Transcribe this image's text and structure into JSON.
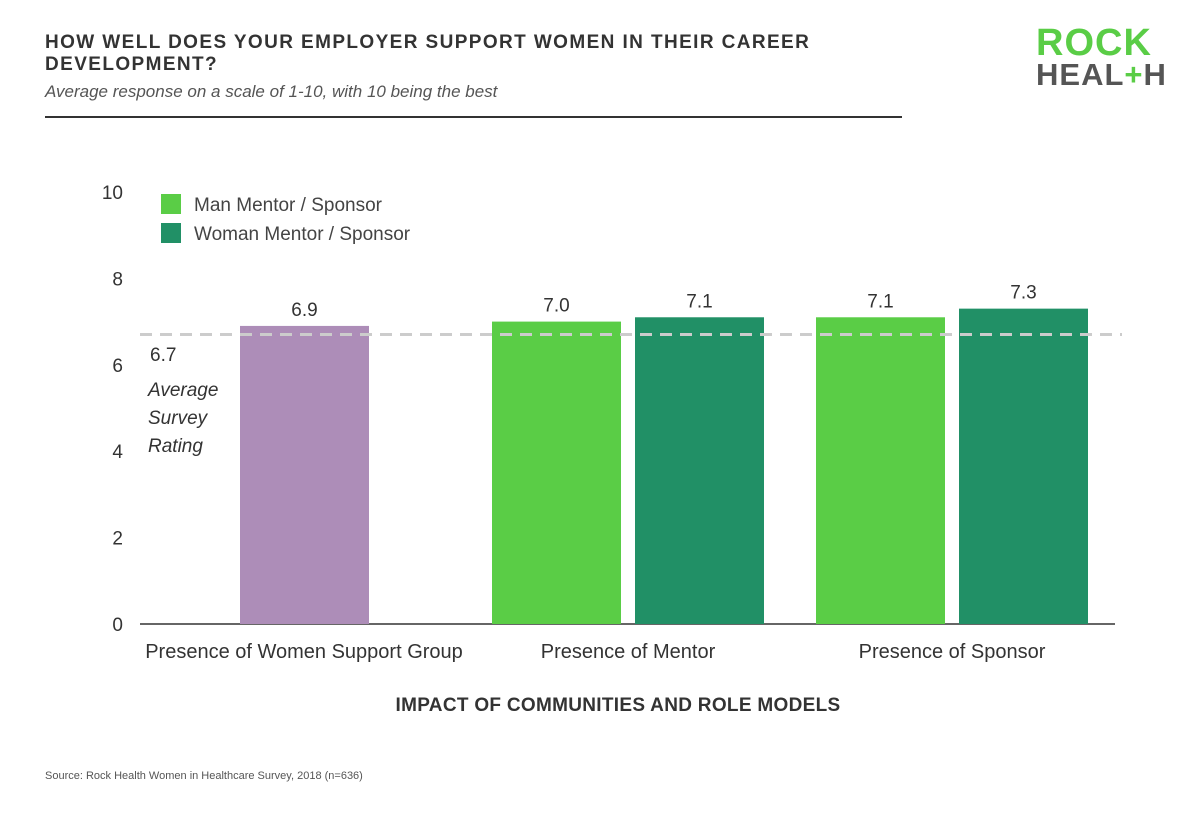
{
  "header": {
    "title": "HOW WELL DOES YOUR EMPLOYER SUPPORT WOMEN IN THEIR CAREER DEVELOPMENT?",
    "subtitle": "Average response on a scale of 1-10, with 10 being the best"
  },
  "logo": {
    "line1": "ROCK",
    "line2_prefix": "HEAL",
    "line2_plus": "+",
    "line2_suffix": "H"
  },
  "source": "Source: Rock Health Women in Healthcare Survey, 2018 (n=636)",
  "colors": {
    "man": "#5acd46",
    "woman": "#219066",
    "support_group": "#ad8db8",
    "average_line": "#cccccc"
  },
  "chart_data": {
    "type": "bar",
    "categories": [
      "Presence of Women Support Group",
      "Presence of Mentor",
      "Presence of Sponsor"
    ],
    "bars": [
      {
        "category": "Presence of Women Support Group",
        "series": null,
        "value": 6.9,
        "label": "6.9",
        "color_key": "support_group"
      },
      {
        "category": "Presence of Mentor",
        "series": "Man Mentor / Sponsor",
        "value": 7.0,
        "label": "7.0",
        "color_key": "man"
      },
      {
        "category": "Presence of Mentor",
        "series": "Woman Mentor / Sponsor",
        "value": 7.1,
        "label": "7.1",
        "color_key": "woman"
      },
      {
        "category": "Presence of Sponsor",
        "series": "Man Mentor / Sponsor",
        "value": 7.1,
        "label": "7.1",
        "color_key": "man"
      },
      {
        "category": "Presence of Sponsor",
        "series": "Woman Mentor / Sponsor",
        "value": 7.3,
        "label": "7.3",
        "color_key": "woman"
      }
    ],
    "legend": [
      {
        "name": "Man Mentor / Sponsor",
        "color_key": "man"
      },
      {
        "name": "Woman Mentor / Sponsor",
        "color_key": "woman"
      }
    ],
    "legend_position": "top-left",
    "reference_line": {
      "value": 6.7,
      "value_label": "6.7",
      "text": [
        "Average",
        "Survey",
        "Rating"
      ],
      "style": "dashed"
    },
    "xlabel": "IMPACT OF COMMUNITIES AND ROLE MODELS",
    "ylabel": "",
    "ylim": [
      0,
      10
    ],
    "yticks": [
      0,
      2,
      4,
      6,
      8,
      10
    ],
    "grid": false
  }
}
